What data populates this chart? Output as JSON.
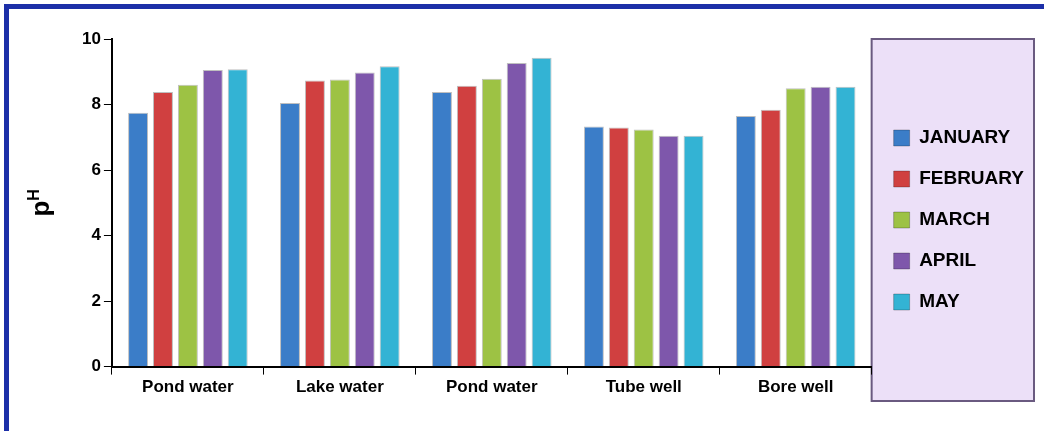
{
  "chart_data": {
    "type": "bar",
    "ylabel": "p$^{H}$",
    "categories": [
      "Pond water",
      "Lake water",
      "Pond water",
      "Tube well",
      "Bore well"
    ],
    "series": [
      {
        "name": "JANUARY",
        "color": "#3b7dc8",
        "values": [
          7.75,
          8.05,
          8.38,
          7.33,
          7.65
        ]
      },
      {
        "name": "FEBRUARY",
        "color": "#d04040",
        "values": [
          8.38,
          8.73,
          8.57,
          7.3,
          7.84
        ]
      },
      {
        "name": "MARCH",
        "color": "#9dc244",
        "values": [
          8.6,
          8.76,
          8.79,
          7.24,
          8.5
        ]
      },
      {
        "name": "APRIL",
        "color": "#7e57ab",
        "values": [
          9.05,
          8.98,
          9.27,
          7.05,
          8.54
        ]
      },
      {
        "name": "MAY",
        "color": "#33b3d4",
        "values": [
          9.08,
          9.17,
          9.43,
          7.05,
          8.54
        ]
      }
    ],
    "ylim": [
      0,
      10
    ],
    "yticks": [
      0,
      2,
      4,
      6,
      8,
      10
    ],
    "grid": false,
    "legend": "right"
  }
}
